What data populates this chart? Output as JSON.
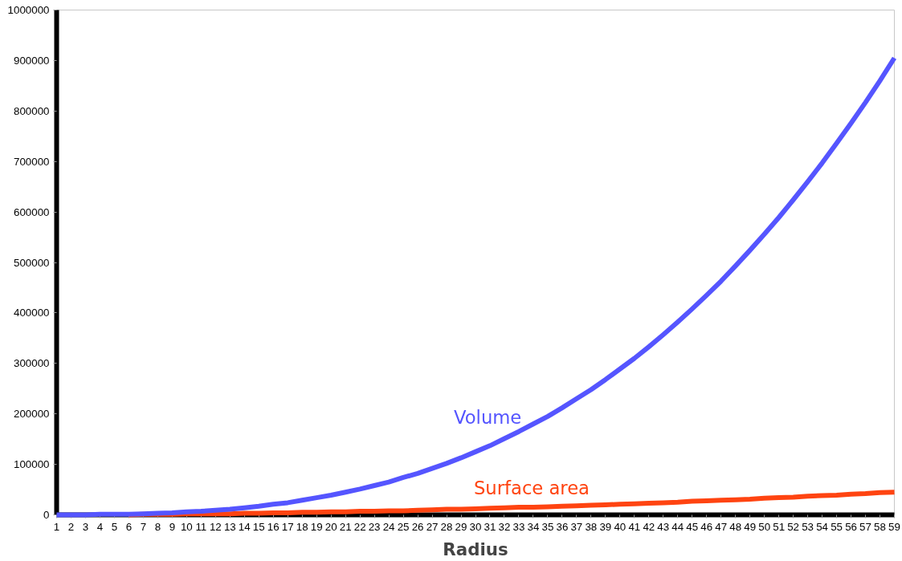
{
  "chart_data": {
    "type": "line",
    "xlabel": "Radius",
    "x": [
      1,
      2,
      3,
      4,
      5,
      6,
      7,
      8,
      9,
      10,
      11,
      12,
      13,
      14,
      15,
      16,
      17,
      18,
      19,
      20,
      21,
      22,
      23,
      24,
      25,
      26,
      27,
      28,
      29,
      30,
      31,
      32,
      33,
      34,
      35,
      36,
      37,
      38,
      39,
      40,
      41,
      42,
      43,
      44,
      45,
      46,
      47,
      48,
      49,
      50,
      51,
      52,
      53,
      54,
      55,
      56,
      57,
      58,
      59
    ],
    "xlim": [
      1,
      59
    ],
    "xticks": [
      1,
      2,
      3,
      4,
      5,
      6,
      7,
      8,
      9,
      10,
      11,
      12,
      13,
      14,
      15,
      16,
      17,
      18,
      19,
      20,
      21,
      22,
      23,
      24,
      25,
      26,
      27,
      28,
      29,
      30,
      31,
      32,
      33,
      34,
      35,
      36,
      37,
      38,
      39,
      40,
      41,
      42,
      43,
      44,
      45,
      46,
      47,
      48,
      49,
      50,
      51,
      52,
      53,
      54,
      55,
      56,
      57,
      58,
      59
    ],
    "ylim": [
      0,
      1000000
    ],
    "yticks": [
      0,
      100000,
      200000,
      300000,
      400000,
      500000,
      600000,
      700000,
      800000,
      900000,
      1000000
    ],
    "grid": false,
    "marker": "none",
    "line_style": "solid",
    "series": [
      {
        "name": "Volume",
        "color": "#5555ff",
        "values": [
          0,
          0,
          0,
          1000,
          1000,
          1000,
          2000,
          3000,
          4000,
          6000,
          7000,
          9000,
          11000,
          14000,
          17000,
          21000,
          24000,
          29000,
          34000,
          39000,
          45000,
          51000,
          58000,
          65000,
          74000,
          82000,
          92000,
          102000,
          113000,
          125000,
          137000,
          151000,
          165000,
          180000,
          195000,
          212000,
          230000,
          248000,
          268000,
          289000,
          310000,
          333000,
          357000,
          382000,
          408000,
          435000,
          463000,
          493000,
          524000,
          556000,
          589000,
          624000,
          660000,
          697000,
          736000,
          776000,
          817000,
          860000,
          905000
        ]
      },
      {
        "name": "Surface area",
        "color": "#ff4411",
        "values": [
          null,
          null,
          null,
          null,
          null,
          0,
          1000,
          1000,
          1000,
          2000,
          2000,
          2000,
          2000,
          3000,
          3000,
          4000,
          4000,
          5000,
          5000,
          6000,
          6000,
          7000,
          7000,
          8000,
          8000,
          9000,
          10000,
          11000,
          11000,
          12000,
          13000,
          14000,
          15000,
          15000,
          16000,
          17000,
          18000,
          19000,
          20000,
          21000,
          22000,
          23000,
          24000,
          25000,
          27000,
          28000,
          29000,
          30000,
          31000,
          33000,
          34000,
          35000,
          37000,
          38000,
          39000,
          41000,
          42000,
          44000,
          45000
        ]
      }
    ]
  }
}
